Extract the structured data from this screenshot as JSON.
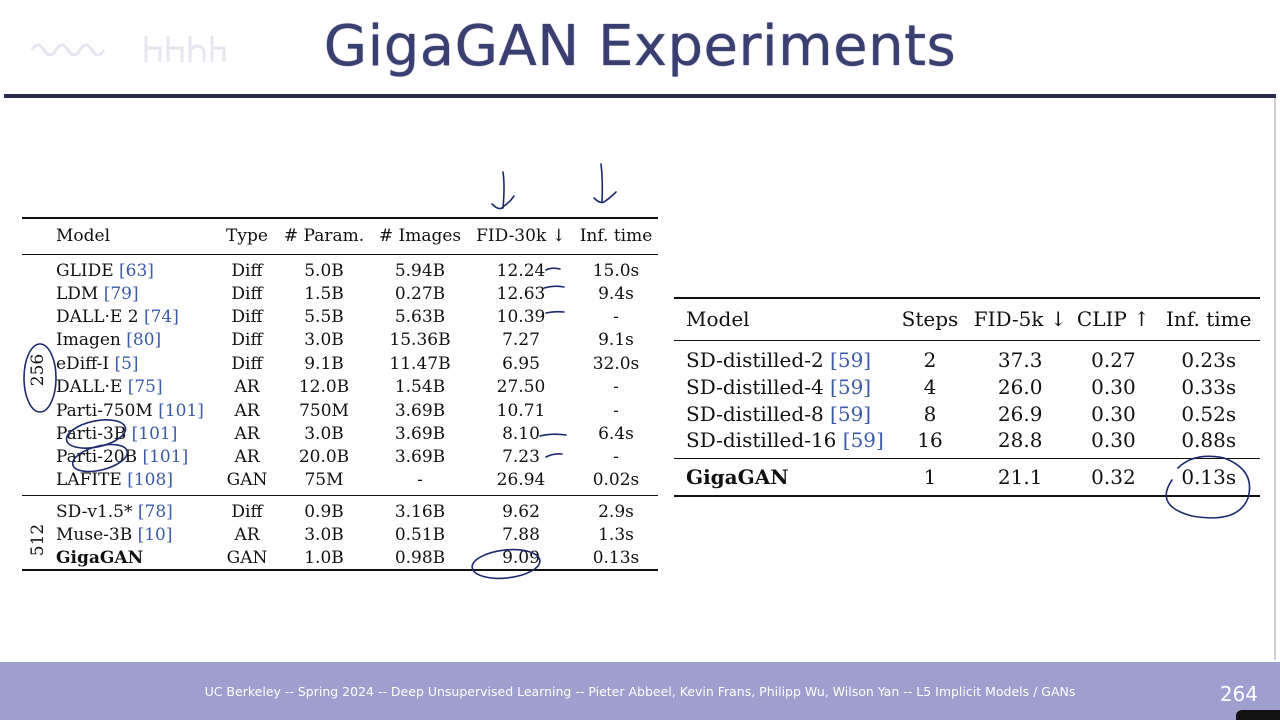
{
  "title": "GigaGAN Experiments",
  "footer": {
    "text": "UC Berkeley -- Spring 2024 -- Deep Unsupervised Learning -- Pieter Abbeel, Kevin Frans, Philipp Wu, Wilson Yan  -- L5 Implicit Models / GANs",
    "page_number": "264"
  },
  "table_left": {
    "headers": [
      "Model",
      "Type",
      "# Param.",
      "# Images",
      "FID-30k ↓",
      "Inf. time"
    ],
    "group_labels": {
      "g256": "256",
      "g512": "512"
    },
    "rows": [
      {
        "model": "GLIDE",
        "ref": "[63]",
        "type": "Diff",
        "params": "5.0B",
        "images": "5.94B",
        "fid": "12.24",
        "time": "15.0s"
      },
      {
        "model": "LDM",
        "ref": "[79]",
        "type": "Diff",
        "params": "1.5B",
        "images": "0.27B",
        "fid": "12.63",
        "time": "9.4s"
      },
      {
        "model": "DALL·E 2",
        "ref": "[74]",
        "type": "Diff",
        "params": "5.5B",
        "images": "5.63B",
        "fid": "10.39",
        "time": "-"
      },
      {
        "model": "Imagen",
        "ref": "[80]",
        "type": "Diff",
        "params": "3.0B",
        "images": "15.36B",
        "fid": "7.27",
        "time": "9.1s"
      },
      {
        "model": "eDiff-I",
        "ref": "[5]",
        "type": "Diff",
        "params": "9.1B",
        "images": "11.47B",
        "fid": "6.95",
        "time": "32.0s"
      },
      {
        "model": "DALL·E",
        "ref": "[75]",
        "type": "AR",
        "params": "12.0B",
        "images": "1.54B",
        "fid": "27.50",
        "time": "-"
      },
      {
        "model": "Parti-750M",
        "ref": "[101]",
        "type": "AR",
        "params": "750M",
        "images": "3.69B",
        "fid": "10.71",
        "time": "-"
      },
      {
        "model": "Parti-3B",
        "ref": "[101]",
        "type": "AR",
        "params": "3.0B",
        "images": "3.69B",
        "fid": "8.10",
        "time": "6.4s"
      },
      {
        "model": "Parti-20B",
        "ref": "[101]",
        "type": "AR",
        "params": "20.0B",
        "images": "3.69B",
        "fid": "7.23",
        "time": "-"
      },
      {
        "model": "LAFITE",
        "ref": "[108]",
        "type": "GAN",
        "params": "75M",
        "images": "-",
        "fid": "26.94",
        "time": "0.02s"
      },
      {
        "model": "SD-v1.5*",
        "ref": "[78]",
        "type": "Diff",
        "params": "0.9B",
        "images": "3.16B",
        "fid": "9.62",
        "time": "2.9s"
      },
      {
        "model": "Muse-3B",
        "ref": "[10]",
        "type": "AR",
        "params": "3.0B",
        "images": "0.51B",
        "fid": "7.88",
        "time": "1.3s"
      },
      {
        "model": "GigaGAN",
        "ref": "",
        "type": "GAN",
        "params": "1.0B",
        "images": "0.98B",
        "fid": "9.09",
        "time": "0.13s"
      }
    ]
  },
  "table_right": {
    "headers": [
      "Model",
      "Steps",
      "FID-5k ↓",
      "CLIP ↑",
      "Inf. time"
    ],
    "rows": [
      {
        "model": "SD-distilled-2",
        "ref": "[59]",
        "steps": "2",
        "fid": "37.3",
        "clip": "0.27",
        "time": "0.23s"
      },
      {
        "model": "SD-distilled-4",
        "ref": "[59]",
        "steps": "4",
        "fid": "26.0",
        "clip": "0.30",
        "time": "0.33s"
      },
      {
        "model": "SD-distilled-8",
        "ref": "[59]",
        "steps": "8",
        "fid": "26.9",
        "clip": "0.30",
        "time": "0.52s"
      },
      {
        "model": "SD-distilled-16",
        "ref": "[59]",
        "steps": "16",
        "fid": "28.8",
        "clip": "0.30",
        "time": "0.88s"
      },
      {
        "model": "GigaGAN",
        "ref": "",
        "steps": "1",
        "fid": "21.1",
        "clip": "0.32",
        "time": "0.13s"
      }
    ]
  },
  "colors": {
    "title": "#3a3f72",
    "footer_bg": "#9f9fcf",
    "ref_link": "#3b5aa8",
    "annotation_ink": "#1e2a6e"
  }
}
